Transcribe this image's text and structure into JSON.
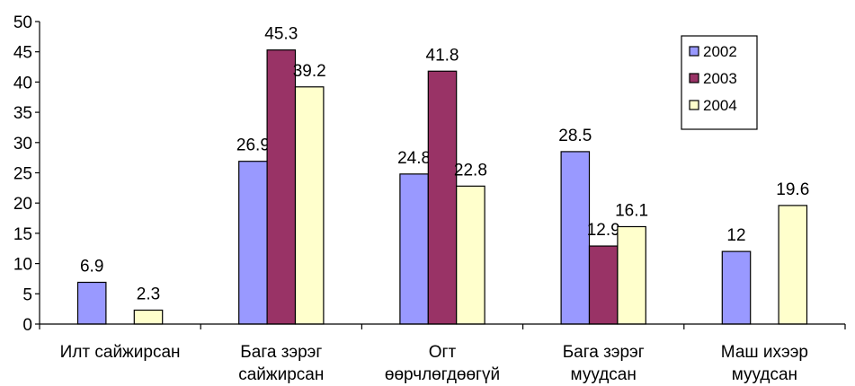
{
  "chart_data": {
    "type": "bar",
    "categories": [
      [
        "Илт сайжирсан"
      ],
      [
        "Бага зэрэг",
        "сайжирсан"
      ],
      [
        "Огт",
        "өөрчлөгдөөгүй"
      ],
      [
        "Бага зэрэг",
        "муудсан"
      ],
      [
        "Маш ихээр",
        "муудсан"
      ]
    ],
    "series": [
      {
        "name": "2002",
        "color": "#9999ff",
        "values": [
          6.9,
          26.9,
          24.8,
          28.5,
          12
        ]
      },
      {
        "name": "2003",
        "color": "#993366",
        "values": [
          null,
          45.3,
          41.8,
          12.9,
          null
        ]
      },
      {
        "name": "2004",
        "color": "#ffffcc",
        "values": [
          2.3,
          39.2,
          22.8,
          16.1,
          19.6
        ]
      }
    ],
    "data_labels": [
      [
        "6.9",
        "26.9",
        "24.8",
        "28.5",
        "12"
      ],
      [
        "",
        "45.3",
        "41.8",
        "12.9",
        ""
      ],
      [
        "2.3",
        "39.2",
        "22.8",
        "16.1",
        "19.6"
      ]
    ],
    "yticks": [
      "0",
      "5",
      "10",
      "15",
      "20",
      "25",
      "30",
      "35",
      "40",
      "45",
      "50"
    ],
    "ylim": [
      0,
      50
    ],
    "grid": false,
    "legend_position": "top-right",
    "title": "",
    "xlabel": "",
    "ylabel": ""
  }
}
